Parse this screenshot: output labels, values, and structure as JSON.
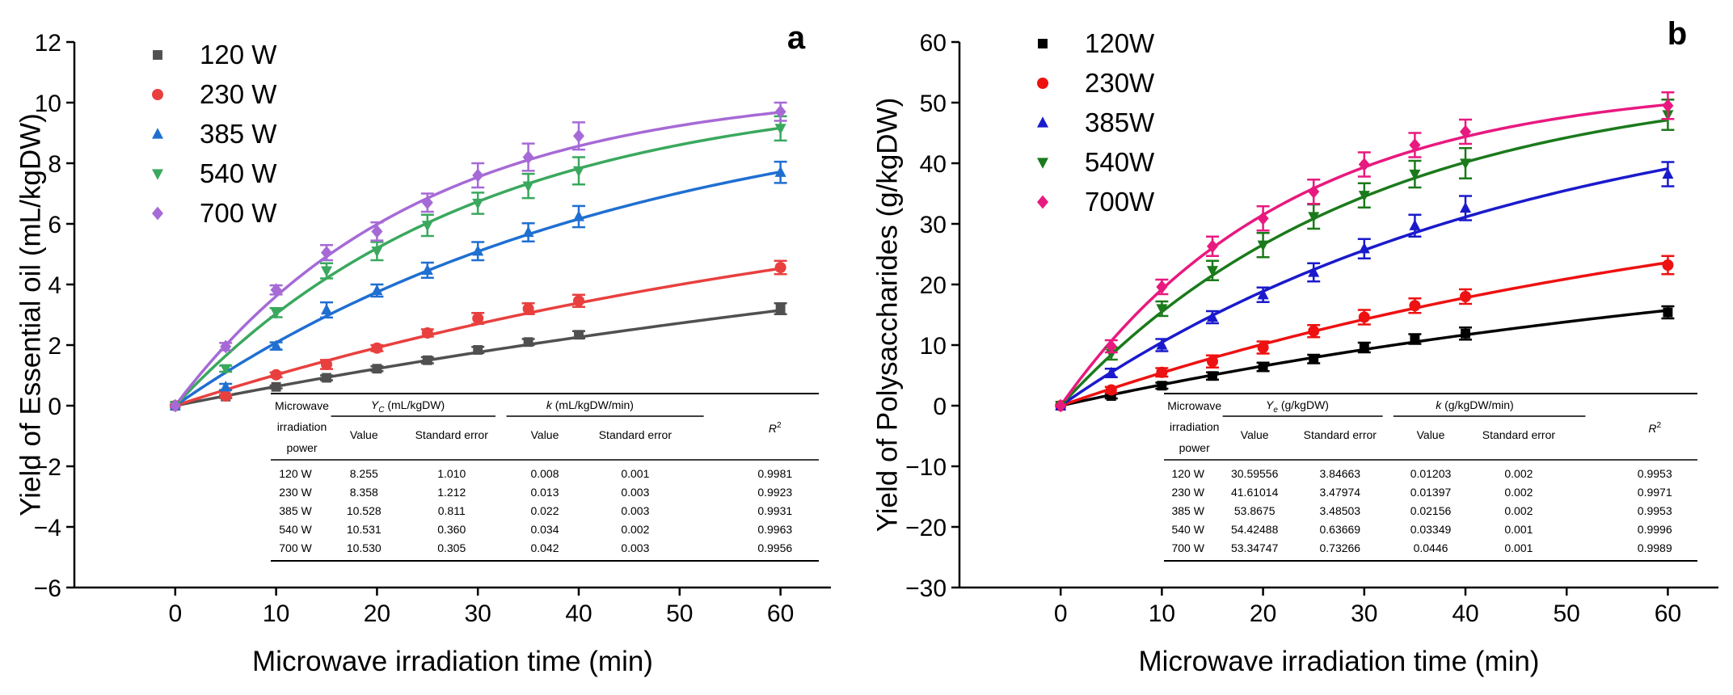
{
  "chart_data": [
    {
      "type": "scatter",
      "panel_label": "a",
      "title": "",
      "xlabel": "Microwave irradiation time (min)",
      "ylabel": "Yield of Essential oil (mL/kgDW)",
      "xlim": [
        -10,
        65
      ],
      "ylim": [
        -6,
        12
      ],
      "xticks": [
        0,
        10,
        20,
        30,
        40,
        50,
        60
      ],
      "yticks": [
        -6,
        -4,
        -2,
        0,
        2,
        4,
        6,
        8,
        10,
        12
      ],
      "grid": false,
      "legend_position": "top-left",
      "x": [
        0,
        5,
        10,
        15,
        20,
        25,
        30,
        35,
        40,
        60
      ],
      "series": [
        {
          "name": "120 W",
          "color": "#505050",
          "marker": "square",
          "Yc": 8.255,
          "k": 0.008,
          "values": [
            0,
            0.3,
            0.62,
            0.92,
            1.22,
            1.5,
            1.84,
            2.1,
            2.34,
            3.2
          ],
          "errors": [
            0,
            0.05,
            0.05,
            0.08,
            0.08,
            0.1,
            0.1,
            0.1,
            0.12,
            0.18
          ]
        },
        {
          "name": "230 W",
          "color": "#e8403f",
          "marker": "circle",
          "Yc": 8.358,
          "k": 0.013,
          "values": [
            0,
            0.32,
            1.02,
            1.36,
            1.9,
            2.4,
            2.88,
            3.2,
            3.46,
            4.56
          ],
          "errors": [
            0,
            0.05,
            0.08,
            0.15,
            0.1,
            0.12,
            0.18,
            0.18,
            0.2,
            0.22
          ]
        },
        {
          "name": "385 W",
          "color": "#1f6fd1",
          "marker": "triangle-up",
          "Yc": 10.528,
          "k": 0.022,
          "values": [
            0,
            0.62,
            1.97,
            3.16,
            3.8,
            4.47,
            5.1,
            5.72,
            6.24,
            7.7
          ],
          "errors": [
            0,
            0.1,
            0.12,
            0.25,
            0.2,
            0.25,
            0.3,
            0.3,
            0.35,
            0.35
          ]
        },
        {
          "name": "540 W",
          "color": "#3aa85e",
          "marker": "triangle-down",
          "Yc": 10.531,
          "k": 0.034,
          "values": [
            0,
            1.22,
            3.07,
            4.45,
            5.1,
            5.95,
            6.68,
            7.25,
            7.75,
            9.15
          ],
          "errors": [
            0,
            0.1,
            0.15,
            0.25,
            0.3,
            0.35,
            0.35,
            0.4,
            0.45,
            0.4
          ]
        },
        {
          "name": "700 W",
          "color": "#a66ad6",
          "marker": "diamond",
          "Yc": 10.53,
          "k": 0.042,
          "values": [
            0,
            1.95,
            3.82,
            5.05,
            5.75,
            6.7,
            7.6,
            8.2,
            8.9,
            9.7
          ],
          "errors": [
            0,
            0.12,
            0.15,
            0.25,
            0.3,
            0.3,
            0.4,
            0.45,
            0.45,
            0.3
          ]
        }
      ],
      "table": {
        "header_power": "Microwave irradiation power",
        "header_param": "Y",
        "header_param_sub": "C",
        "header_param_unit": "(mL/kgDW)",
        "header_k": "k",
        "header_k_unit": "(mL/kgDW/min)",
        "sub_value": "Value",
        "sub_se": "Standard error",
        "r2_base": "R",
        "r2_sup": "2",
        "rows": [
          [
            "120 W",
            "8.255",
            "1.010",
            "0.008",
            "0.001",
            "0.9981"
          ],
          [
            "230 W",
            "8.358",
            "1.212",
            "0.013",
            "0.003",
            "0.9923"
          ],
          [
            "385 W",
            "10.528",
            "0.811",
            "0.022",
            "0.003",
            "0.9931"
          ],
          [
            "540 W",
            "10.531",
            "0.360",
            "0.034",
            "0.002",
            "0.9963"
          ],
          [
            "700 W",
            "10.530",
            "0.305",
            "0.042",
            "0.003",
            "0.9956"
          ]
        ]
      }
    },
    {
      "type": "scatter",
      "panel_label": "b",
      "title": "",
      "xlabel": "Microwave irradiation time (min)",
      "ylabel": "Yield of  Polysaccharides (g/kgDW)",
      "xlim": [
        -10,
        65
      ],
      "ylim": [
        -30,
        60
      ],
      "xticks": [
        0,
        10,
        20,
        30,
        40,
        50,
        60
      ],
      "yticks": [
        -30,
        -20,
        -10,
        0,
        10,
        20,
        30,
        40,
        50,
        60
      ],
      "grid": false,
      "legend_position": "top-left",
      "x": [
        0,
        5,
        10,
        15,
        20,
        25,
        30,
        35,
        40,
        60
      ],
      "series": [
        {
          "name": "120W",
          "color": "#000000",
          "marker": "square",
          "Yc": 30.59556,
          "k": 0.01203,
          "values": [
            0,
            1.6,
            3.3,
            4.9,
            6.4,
            7.7,
            9.6,
            11.0,
            11.9,
            15.4
          ],
          "errors": [
            0,
            0.4,
            0.5,
            0.6,
            0.7,
            0.7,
            0.8,
            0.8,
            1.0,
            1.0
          ]
        },
        {
          "name": "230W",
          "color": "#ee1111",
          "marker": "circle",
          "Yc": 41.61014,
          "k": 0.01397,
          "values": [
            0,
            2.6,
            5.5,
            7.3,
            9.6,
            12.3,
            14.6,
            16.5,
            18.0,
            23.2
          ],
          "errors": [
            0,
            0.5,
            0.7,
            1.0,
            1.0,
            1.0,
            1.2,
            1.2,
            1.2,
            1.5
          ]
        },
        {
          "name": "385W",
          "color": "#1a1acc",
          "marker": "triangle-up",
          "Yc": 53.8675,
          "k": 0.02156,
          "values": [
            0,
            5.4,
            10.0,
            14.6,
            18.3,
            22.0,
            25.9,
            29.7,
            32.6,
            38.2
          ],
          "errors": [
            0,
            0.7,
            1.0,
            1.0,
            1.2,
            1.5,
            1.6,
            1.8,
            2.0,
            2.0
          ]
        },
        {
          "name": "540W",
          "color": "#1b7a1b",
          "marker": "triangle-down",
          "Yc": 54.42488,
          "k": 0.03349,
          "values": [
            0,
            8.6,
            16.0,
            22.3,
            26.5,
            31.2,
            34.7,
            38.2,
            40.0,
            48.0
          ],
          "errors": [
            0,
            1.0,
            1.2,
            1.6,
            2.0,
            2.0,
            2.0,
            2.2,
            2.5,
            2.5
          ]
        },
        {
          "name": "700W",
          "color": "#e8197f",
          "marker": "diamond",
          "Yc": 53.34747,
          "k": 0.0446,
          "values": [
            0,
            9.8,
            19.6,
            26.3,
            30.9,
            35.3,
            39.8,
            43.0,
            45.2,
            49.5
          ],
          "errors": [
            0,
            1.0,
            1.2,
            1.6,
            2.0,
            2.0,
            2.0,
            2.0,
            2.0,
            2.2
          ]
        }
      ],
      "table": {
        "header_power": "Microwave irradiation power",
        "header_param": "Y",
        "header_param_sub": "e",
        "header_param_unit": "(g/kgDW)",
        "header_k": "k",
        "header_k_unit": "(g/kgDW/min)",
        "sub_value": "Value",
        "sub_se": "Standard error",
        "r2_base": "R",
        "r2_sup": "2",
        "rows": [
          [
            "120 W",
            "30.59556",
            "3.84663",
            "0.01203",
            "0.002",
            "0.9953"
          ],
          [
            "230 W",
            "41.61014",
            "3.47974",
            "0.01397",
            "0.002",
            "0.9971"
          ],
          [
            "385 W",
            "53.8675",
            "3.48503",
            "0.02156",
            "0.002",
            "0.9953"
          ],
          [
            "540 W",
            "54.42488",
            "0.63669",
            "0.03349",
            "0.001",
            "0.9996"
          ],
          [
            "700 W",
            "53.34747",
            "0.73266",
            "0.0446",
            "0.001",
            "0.9989"
          ]
        ]
      }
    }
  ]
}
